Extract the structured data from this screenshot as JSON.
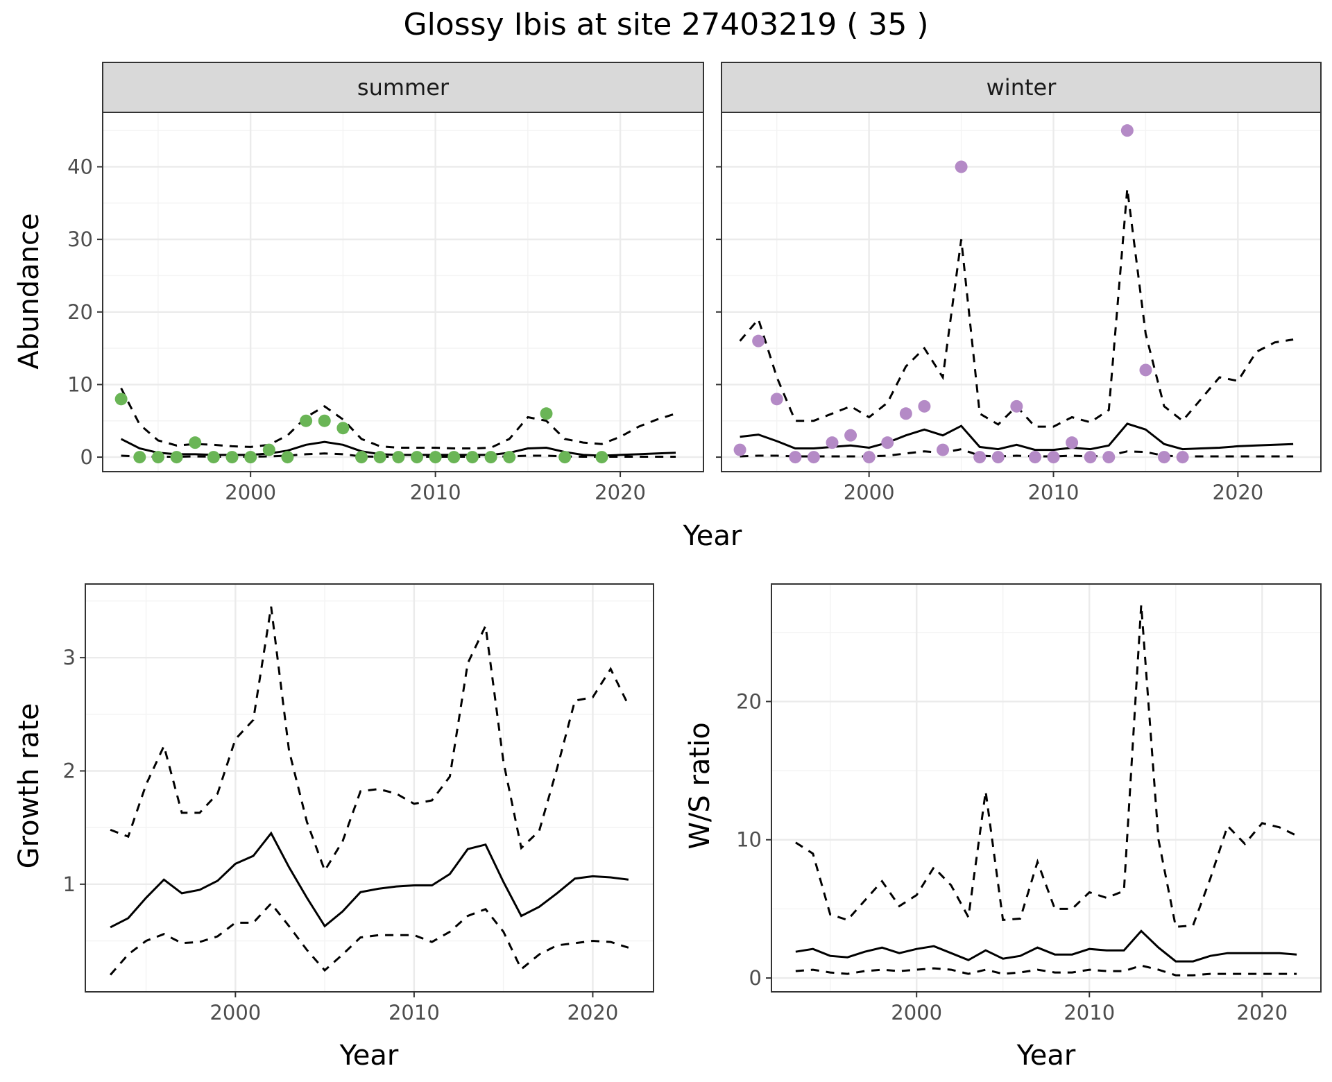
{
  "title": "Glossy Ibis at site 27403219 ( 35 )",
  "colors": {
    "summer_points": "#6ab556",
    "winter_points": "#b48ac6"
  },
  "chart_data": [
    {
      "type": "line",
      "panel": "summer",
      "strip_label": "summer",
      "xlabel": "Year",
      "ylabel": "Abundance",
      "xlim": [
        1992,
        2024.5
      ],
      "ylim": [
        -2,
        47.5
      ],
      "xticks": [
        2000,
        2010,
        2020
      ],
      "yticks": [
        0,
        10,
        20,
        30,
        40
      ],
      "x": [
        1993,
        1994,
        1995,
        1996,
        1997,
        1998,
        1999,
        2000,
        2001,
        2002,
        2003,
        2004,
        2005,
        2006,
        2007,
        2008,
        2009,
        2010,
        2011,
        2012,
        2013,
        2014,
        2015,
        2016,
        2017,
        2018,
        2019,
        2020,
        2021,
        2022,
        2023
      ],
      "series": [
        {
          "style": "solid",
          "values": [
            2.5,
            1.2,
            0.6,
            0.4,
            0.4,
            0.3,
            0.3,
            0.3,
            0.5,
            0.9,
            1.7,
            2.1,
            1.7,
            0.8,
            0.4,
            0.3,
            0.3,
            0.3,
            0.3,
            0.3,
            0.3,
            0.6,
            1.2,
            1.3,
            0.7,
            0.3,
            0.2,
            0.3,
            0.4,
            0.5,
            0.6
          ]
        },
        {
          "style": "dashed",
          "values": [
            9.5,
            4.5,
            2.3,
            1.6,
            1.8,
            1.7,
            1.5,
            1.4,
            1.7,
            3.0,
            5.5,
            7.0,
            5.2,
            2.5,
            1.5,
            1.3,
            1.3,
            1.3,
            1.2,
            1.2,
            1.3,
            2.5,
            5.5,
            5.0,
            2.5,
            2.0,
            1.8,
            2.8,
            4.2,
            5.2,
            6.0
          ]
        },
        {
          "style": "dashed",
          "values": [
            0.2,
            0.1,
            0.05,
            0.05,
            0.1,
            0.05,
            0.05,
            0.05,
            0.1,
            0.2,
            0.4,
            0.5,
            0.4,
            0.1,
            0.05,
            0.05,
            0.05,
            0.05,
            0.05,
            0.05,
            0.05,
            0.1,
            0.2,
            0.2,
            0.1,
            0.05,
            0.05,
            0.05,
            0.05,
            0.05,
            0.05
          ]
        }
      ],
      "points": {
        "x": [
          1993,
          1994,
          1995,
          1996,
          1997,
          1998,
          1999,
          2000,
          2001,
          2002,
          2003,
          2004,
          2005,
          2006,
          2007,
          2008,
          2009,
          2010,
          2011,
          2012,
          2013,
          2014,
          2016,
          2017,
          2019
        ],
        "y": [
          8,
          0,
          0,
          0,
          2,
          0,
          0,
          0,
          1,
          0,
          5,
          5,
          4,
          0,
          0,
          0,
          0,
          0,
          0,
          0,
          0,
          0,
          6,
          0,
          0
        ]
      }
    },
    {
      "type": "line",
      "panel": "winter",
      "strip_label": "winter",
      "xlabel": "Year",
      "ylabel": "Abundance",
      "xlim": [
        1992,
        2024.5
      ],
      "ylim": [
        -2,
        47.5
      ],
      "xticks": [
        2000,
        2010,
        2020
      ],
      "yticks": [
        0,
        10,
        20,
        30,
        40
      ],
      "x": [
        1993,
        1994,
        1995,
        1996,
        1997,
        1998,
        1999,
        2000,
        2001,
        2002,
        2003,
        2004,
        2005,
        2006,
        2007,
        2008,
        2009,
        2010,
        2011,
        2012,
        2013,
        2014,
        2015,
        2016,
        2017,
        2018,
        2019,
        2020,
        2021,
        2022,
        2023
      ],
      "series": [
        {
          "style": "solid",
          "values": [
            2.8,
            3.1,
            2.2,
            1.2,
            1.2,
            1.4,
            1.6,
            1.3,
            2.0,
            3.0,
            3.8,
            3.0,
            4.3,
            1.4,
            1.1,
            1.7,
            1.0,
            1.0,
            1.3,
            1.1,
            1.6,
            4.6,
            3.8,
            1.8,
            1.1,
            1.2,
            1.3,
            1.5,
            1.6,
            1.7,
            1.8
          ]
        },
        {
          "style": "dashed",
          "values": [
            16,
            19,
            11,
            5,
            5,
            6,
            7,
            5.5,
            7.5,
            12.5,
            15,
            11,
            30,
            6,
            4.5,
            7,
            4.2,
            4.2,
            5.5,
            4.8,
            6.5,
            37,
            17,
            7,
            5,
            8,
            11,
            10.5,
            14.5,
            15.8,
            16.2
          ]
        },
        {
          "style": "dashed",
          "values": [
            0.1,
            0.2,
            0.2,
            0.1,
            0.1,
            0.1,
            0.1,
            0.1,
            0.2,
            0.5,
            0.8,
            0.6,
            1.1,
            0.2,
            0.1,
            0.2,
            0.1,
            0.1,
            0.2,
            0.1,
            0.2,
            0.8,
            0.7,
            0.2,
            0.1,
            0.1,
            0.1,
            0.1,
            0.1,
            0.1,
            0.1
          ]
        }
      ],
      "points": {
        "x": [
          1993,
          1994,
          1995,
          1996,
          1997,
          1998,
          1999,
          2000,
          2001,
          2002,
          2003,
          2004,
          2005,
          2006,
          2007,
          2008,
          2009,
          2010,
          2011,
          2012,
          2013,
          2014,
          2015,
          2016,
          2017
        ],
        "y": [
          1,
          16,
          8,
          0,
          0,
          2,
          3,
          0,
          2,
          6,
          7,
          1,
          40,
          0,
          0,
          7,
          0,
          0,
          2,
          0,
          0,
          45,
          12,
          0,
          0
        ]
      }
    },
    {
      "type": "line",
      "panel": "growth",
      "xlabel": "Year",
      "ylabel": "Growth rate",
      "xlim": [
        1991.6,
        2023.4
      ],
      "ylim": [
        0.05,
        3.65
      ],
      "xticks": [
        2000,
        2010,
        2020
      ],
      "yticks": [
        1,
        2,
        3
      ],
      "x": [
        1993,
        1994,
        1995,
        1996,
        1997,
        1998,
        1999,
        2000,
        2001,
        2002,
        2003,
        2004,
        2005,
        2006,
        2007,
        2008,
        2009,
        2010,
        2011,
        2012,
        2013,
        2014,
        2015,
        2016,
        2017,
        2018,
        2019,
        2020,
        2021,
        2022
      ],
      "series": [
        {
          "style": "solid",
          "values": [
            0.62,
            0.7,
            0.88,
            1.04,
            0.92,
            0.95,
            1.03,
            1.18,
            1.25,
            1.45,
            1.15,
            0.88,
            0.63,
            0.76,
            0.93,
            0.96,
            0.98,
            0.99,
            0.99,
            1.09,
            1.31,
            1.35,
            1.02,
            0.72,
            0.8,
            0.92,
            1.05,
            1.07,
            1.06,
            1.04
          ]
        },
        {
          "style": "dashed",
          "values": [
            1.48,
            1.42,
            1.88,
            2.22,
            1.63,
            1.63,
            1.8,
            2.28,
            2.45,
            3.45,
            2.18,
            1.55,
            1.12,
            1.38,
            1.82,
            1.84,
            1.8,
            1.71,
            1.74,
            1.95,
            2.95,
            3.28,
            2.08,
            1.32,
            1.47,
            2.02,
            2.62,
            2.65,
            2.9,
            2.58
          ]
        },
        {
          "style": "dashed",
          "values": [
            0.2,
            0.38,
            0.5,
            0.56,
            0.48,
            0.49,
            0.54,
            0.66,
            0.66,
            0.83,
            0.63,
            0.42,
            0.24,
            0.38,
            0.53,
            0.55,
            0.55,
            0.55,
            0.49,
            0.58,
            0.72,
            0.78,
            0.58,
            0.25,
            0.38,
            0.46,
            0.48,
            0.5,
            0.49,
            0.44
          ]
        }
      ]
    },
    {
      "type": "line",
      "panel": "ratio",
      "xlabel": "Year",
      "ylabel": "W/S ratio",
      "xlim": [
        1991.6,
        2023.4
      ],
      "ylim": [
        -1,
        28.5
      ],
      "xticks": [
        2000,
        2010,
        2020
      ],
      "yticks": [
        0,
        10,
        20
      ],
      "x": [
        1993,
        1994,
        1995,
        1996,
        1997,
        1998,
        1999,
        2000,
        2001,
        2002,
        2003,
        2004,
        2005,
        2006,
        2007,
        2008,
        2009,
        2010,
        2011,
        2012,
        2013,
        2014,
        2015,
        2016,
        2017,
        2018,
        2019,
        2020,
        2021,
        2022
      ],
      "series": [
        {
          "style": "solid",
          "values": [
            1.9,
            2.1,
            1.6,
            1.5,
            1.9,
            2.2,
            1.8,
            2.1,
            2.3,
            1.8,
            1.3,
            2.0,
            1.4,
            1.6,
            2.2,
            1.7,
            1.7,
            2.1,
            2.0,
            2.0,
            3.4,
            2.2,
            1.2,
            1.2,
            1.6,
            1.8,
            1.8,
            1.8,
            1.8,
            1.7
          ]
        },
        {
          "style": "dashed",
          "values": [
            9.8,
            9.0,
            4.6,
            4.2,
            5.6,
            7.0,
            5.2,
            6.0,
            8.0,
            6.7,
            4.4,
            13.5,
            4.2,
            4.3,
            8.4,
            5.0,
            5.0,
            6.2,
            5.8,
            6.3,
            27.0,
            10.0,
            3.7,
            3.8,
            7.2,
            11.0,
            9.7,
            11.2,
            10.9,
            10.3
          ]
        },
        {
          "style": "dashed",
          "values": [
            0.5,
            0.6,
            0.4,
            0.3,
            0.5,
            0.6,
            0.5,
            0.6,
            0.7,
            0.6,
            0.3,
            0.6,
            0.3,
            0.4,
            0.6,
            0.4,
            0.4,
            0.6,
            0.5,
            0.5,
            0.9,
            0.6,
            0.2,
            0.2,
            0.3,
            0.3,
            0.3,
            0.3,
            0.3,
            0.3
          ]
        }
      ]
    }
  ]
}
